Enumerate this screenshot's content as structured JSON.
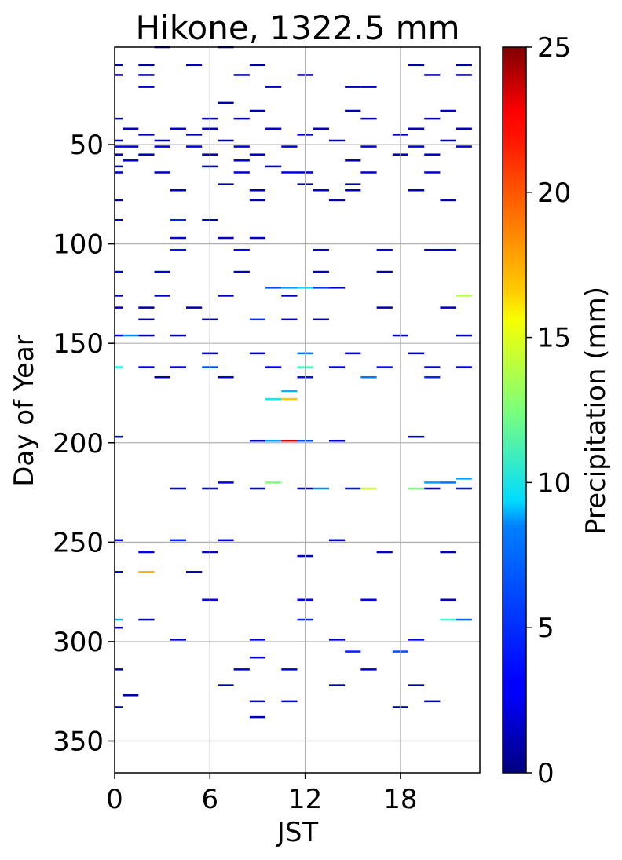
{
  "chart_data": {
    "type": "heatmap",
    "title": "Hikone, 1322.5 mm",
    "xlabel": "JST",
    "ylabel": "Day of Year",
    "colorbar_label": "Precipitation (mm)",
    "colormap": "jet",
    "x_range": [
      0,
      23
    ],
    "y_range": [
      1,
      366
    ],
    "y_inverted": true,
    "x_ticks": [
      "0",
      "6",
      "12",
      "18"
    ],
    "y_ticks": [
      "50",
      "100",
      "150",
      "200",
      "250",
      "300",
      "350"
    ],
    "colorbar_ticks": [
      "0",
      "5",
      "10",
      "15",
      "20",
      "25"
    ],
    "colorbar_range": [
      0,
      25
    ],
    "grid": true,
    "cells": [
      [
        3,
        1,
        1.0
      ],
      [
        7,
        1,
        0.6
      ],
      [
        0,
        10,
        1.0
      ],
      [
        2,
        10,
        1.0
      ],
      [
        5,
        10,
        1.5
      ],
      [
        9,
        10,
        1.0
      ],
      [
        19,
        10,
        1.0
      ],
      [
        22,
        10,
        1.0
      ],
      [
        0,
        15,
        1.0
      ],
      [
        2,
        15,
        1.0
      ],
      [
        8,
        15,
        1.0
      ],
      [
        12,
        15,
        1.0
      ],
      [
        20,
        15,
        1.0
      ],
      [
        22,
        15,
        1.0
      ],
      [
        2,
        21,
        2.0
      ],
      [
        10,
        21,
        1.5
      ],
      [
        15,
        21,
        1.0
      ],
      [
        16,
        21,
        1.5
      ],
      [
        7,
        29,
        1.0
      ],
      [
        9,
        33,
        1.0
      ],
      [
        15,
        33,
        1.0
      ],
      [
        21,
        33,
        1.5
      ],
      [
        0,
        37,
        1.0
      ],
      [
        6,
        37,
        1.5
      ],
      [
        8,
        37,
        1.5
      ],
      [
        16,
        37,
        1.5
      ],
      [
        20,
        37,
        1.5
      ],
      [
        1,
        42,
        1.5
      ],
      [
        4,
        42,
        2.0
      ],
      [
        6,
        42,
        2.0
      ],
      [
        10,
        42,
        2.0
      ],
      [
        13,
        42,
        1.5
      ],
      [
        19,
        42,
        1.5
      ],
      [
        22,
        42,
        1.5
      ],
      [
        2,
        45,
        1.0
      ],
      [
        5,
        45,
        1.0
      ],
      [
        12,
        45,
        1.5
      ],
      [
        18,
        45,
        1.0
      ],
      [
        0,
        48,
        1.5
      ],
      [
        3,
        48,
        1.5
      ],
      [
        7,
        48,
        1.0
      ],
      [
        14,
        48,
        1.5
      ],
      [
        21,
        48,
        1.0
      ],
      [
        0,
        51,
        2.5
      ],
      [
        1,
        51,
        2.0
      ],
      [
        3,
        51,
        2.0
      ],
      [
        5,
        51,
        2.5
      ],
      [
        8,
        51,
        2.0
      ],
      [
        11,
        51,
        2.0
      ],
      [
        16,
        51,
        2.0
      ],
      [
        19,
        51,
        2.0
      ],
      [
        22,
        51,
        2.0
      ],
      [
        0,
        55,
        1.0
      ],
      [
        2,
        55,
        1.0
      ],
      [
        6,
        55,
        1.0
      ],
      [
        9,
        55,
        1.5
      ],
      [
        18,
        55,
        1.0
      ],
      [
        20,
        55,
        1.5
      ],
      [
        1,
        58,
        1.5
      ],
      [
        8,
        58,
        1.5
      ],
      [
        15,
        58,
        1.0
      ],
      [
        0,
        61,
        1.0
      ],
      [
        6,
        61,
        1.5
      ],
      [
        10,
        61,
        2.0
      ],
      [
        0,
        64,
        2.0
      ],
      [
        3,
        64,
        1.5
      ],
      [
        8,
        64,
        2.0
      ],
      [
        11,
        64,
        2.5
      ],
      [
        12,
        64,
        2.0
      ],
      [
        16,
        64,
        2.0
      ],
      [
        20,
        64,
        2.0
      ],
      [
        7,
        70,
        1.0
      ],
      [
        12,
        70,
        1.0
      ],
      [
        15,
        70,
        1.0
      ],
      [
        4,
        73,
        1.0
      ],
      [
        9,
        73,
        1.0
      ],
      [
        13,
        73,
        1.5
      ],
      [
        15,
        73,
        1.0
      ],
      [
        19,
        73,
        1.0
      ],
      [
        0,
        78,
        1.0
      ],
      [
        9,
        78,
        1.0
      ],
      [
        14,
        78,
        1.0
      ],
      [
        21,
        78,
        1.0
      ],
      [
        0,
        88,
        1.5
      ],
      [
        4,
        88,
        4.0
      ],
      [
        6,
        88,
        1.5
      ],
      [
        4,
        97,
        2.0
      ],
      [
        7,
        97,
        1.5
      ],
      [
        9,
        97,
        1.5
      ],
      [
        4,
        103,
        3.5
      ],
      [
        8,
        103,
        3.0
      ],
      [
        13,
        103,
        2.0
      ],
      [
        17,
        103,
        3.0
      ],
      [
        20,
        103,
        1.5
      ],
      [
        21,
        103,
        2.5
      ],
      [
        0,
        114,
        2.5
      ],
      [
        3,
        114,
        2.0
      ],
      [
        8,
        114,
        1.5
      ],
      [
        13,
        114,
        1.5
      ],
      [
        17,
        114,
        1.0
      ],
      [
        10,
        122,
        5.0
      ],
      [
        11,
        122,
        7.0
      ],
      [
        12,
        122,
        8.5
      ],
      [
        13,
        122,
        4.5
      ],
      [
        14,
        122,
        2.0
      ],
      [
        0,
        126,
        1.5
      ],
      [
        3,
        126,
        1.5
      ],
      [
        7,
        126,
        1.5
      ],
      [
        11,
        126,
        1.5
      ],
      [
        22,
        126,
        14.0
      ],
      [
        0,
        132,
        1.5
      ],
      [
        2,
        132,
        1.0
      ],
      [
        5,
        132,
        1.0
      ],
      [
        17,
        132,
        1.0
      ],
      [
        21,
        132,
        1.5
      ],
      [
        2,
        138,
        1.0
      ],
      [
        6,
        138,
        1.0
      ],
      [
        9,
        138,
        4.5
      ],
      [
        11,
        138,
        2.0
      ],
      [
        13,
        138,
        1.0
      ],
      [
        0,
        146,
        3.0
      ],
      [
        1,
        146,
        6.5
      ],
      [
        2,
        146,
        1.0
      ],
      [
        4,
        146,
        1.0
      ],
      [
        18,
        146,
        1.5
      ],
      [
        22,
        146,
        1.5
      ],
      [
        6,
        155,
        1.5
      ],
      [
        9,
        155,
        1.5
      ],
      [
        12,
        155,
        6.0
      ],
      [
        15,
        155,
        2.0
      ],
      [
        19,
        155,
        1.5
      ],
      [
        0,
        162,
        10.0
      ],
      [
        2,
        162,
        2.5
      ],
      [
        4,
        162,
        2.5
      ],
      [
        6,
        162,
        5.0
      ],
      [
        10,
        162,
        3.0
      ],
      [
        12,
        162,
        11.0
      ],
      [
        14,
        162,
        2.5
      ],
      [
        17,
        162,
        3.5
      ],
      [
        20,
        162,
        2.0
      ],
      [
        22,
        162,
        2.5
      ],
      [
        3,
        167,
        1.0
      ],
      [
        7,
        167,
        2.0
      ],
      [
        12,
        167,
        3.5
      ],
      [
        16,
        167,
        6.0
      ],
      [
        20,
        167,
        4.0
      ],
      [
        11,
        174,
        7.5
      ],
      [
        11,
        178,
        17.0
      ],
      [
        10,
        178,
        9.0
      ],
      [
        0,
        197,
        2.0
      ],
      [
        9,
        199,
        1.5
      ],
      [
        10,
        199,
        7.0
      ],
      [
        11,
        199,
        23.0
      ],
      [
        12,
        199,
        5.0
      ],
      [
        14,
        199,
        2.0
      ],
      [
        19,
        197,
        1.5
      ],
      [
        7,
        220,
        2.0
      ],
      [
        10,
        220,
        12.5
      ],
      [
        20,
        220,
        7.0
      ],
      [
        21,
        220,
        6.0
      ],
      [
        22,
        218,
        7.0
      ],
      [
        4,
        223,
        2.5
      ],
      [
        6,
        223,
        3.0
      ],
      [
        9,
        223,
        2.5
      ],
      [
        12,
        223,
        2.0
      ],
      [
        13,
        223,
        6.5
      ],
      [
        15,
        223,
        3.5
      ],
      [
        16,
        223,
        14.5
      ],
      [
        19,
        223,
        12.5
      ],
      [
        20,
        223,
        3.0
      ],
      [
        22,
        223,
        3.5
      ],
      [
        0,
        249,
        2.5
      ],
      [
        4,
        249,
        4.0
      ],
      [
        7,
        249,
        2.0
      ],
      [
        14,
        249,
        1.5
      ],
      [
        2,
        255,
        3.0
      ],
      [
        6,
        255,
        2.0
      ],
      [
        12,
        257,
        2.5
      ],
      [
        17,
        255,
        2.0
      ],
      [
        21,
        255,
        1.5
      ],
      [
        0,
        265,
        1.5
      ],
      [
        2,
        265,
        17.5
      ],
      [
        5,
        265,
        1.0
      ],
      [
        6,
        279,
        3.0
      ],
      [
        12,
        279,
        3.0
      ],
      [
        16,
        279,
        2.5
      ],
      [
        21,
        279,
        1.5
      ],
      [
        0,
        289,
        7.5
      ],
      [
        2,
        289,
        1.5
      ],
      [
        12,
        289,
        4.0
      ],
      [
        21,
        289,
        10.5
      ],
      [
        22,
        289,
        5.5
      ],
      [
        0,
        293,
        2.0
      ],
      [
        4,
        299,
        2.0
      ],
      [
        9,
        299,
        2.0
      ],
      [
        14,
        299,
        2.0
      ],
      [
        19,
        299,
        2.5
      ],
      [
        15,
        305,
        4.0
      ],
      [
        18,
        305,
        5.0
      ],
      [
        9,
        308,
        1.5
      ],
      [
        0,
        314,
        1.0
      ],
      [
        8,
        314,
        1.5
      ],
      [
        11,
        314,
        2.0
      ],
      [
        16,
        314,
        1.5
      ],
      [
        7,
        322,
        1.0
      ],
      [
        14,
        322,
        1.0
      ],
      [
        19,
        322,
        1.0
      ],
      [
        1,
        327,
        1.0
      ],
      [
        9,
        330,
        1.5
      ],
      [
        11,
        330,
        2.5
      ],
      [
        20,
        330,
        1.0
      ],
      [
        0,
        333,
        1.0
      ],
      [
        18,
        333,
        1.0
      ],
      [
        9,
        338,
        1.5
      ]
    ]
  }
}
